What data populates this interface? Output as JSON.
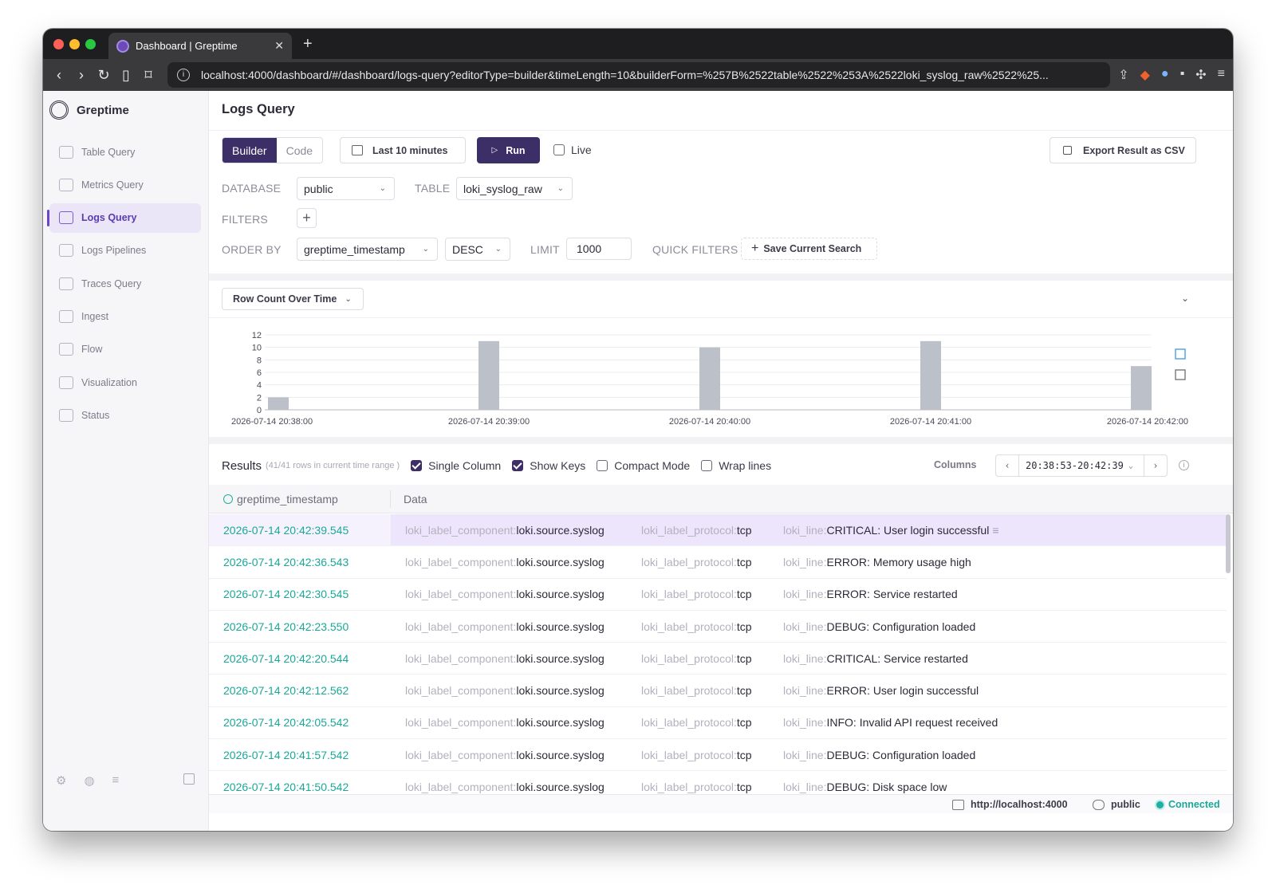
{
  "browser": {
    "tab_title": "Dashboard | Greptime",
    "url": "localhost:4000/dashboard/#/dashboard/logs-query?editorType=builder&timeLength=10&builderForm=%257B%2522table%2522%253A%2522loki_syslog_raw%2522%25..."
  },
  "sidebar": {
    "brand": "Greptime",
    "items": [
      {
        "label": "Table Query",
        "icon": "table-icon"
      },
      {
        "label": "Metrics Query",
        "icon": "chart-icon"
      },
      {
        "label": "Logs Query",
        "icon": "document-icon",
        "active": true
      },
      {
        "label": "Logs Pipelines",
        "icon": "pipeline-icon"
      },
      {
        "label": "Traces Query",
        "icon": "layers-icon"
      },
      {
        "label": "Ingest",
        "icon": "import-icon"
      },
      {
        "label": "Flow",
        "icon": "flow-icon"
      },
      {
        "label": "Visualization",
        "icon": "monitor-icon"
      },
      {
        "label": "Status",
        "icon": "server-icon"
      }
    ]
  },
  "main": {
    "title": "Logs Query",
    "editor_tabs": [
      "Builder",
      "Code"
    ],
    "time_range": "Last 10 minutes",
    "run_label": "Run",
    "live_label": "Live",
    "export_label": "Export Result as CSV",
    "database_label": "DATABASE",
    "database_value": "public",
    "table_label": "TABLE",
    "table_value": "loki_syslog_raw",
    "filters_label": "FILTERS",
    "order_by_label": "ORDER BY",
    "order_by_value": "greptime_timestamp",
    "order_dir_value": "DESC",
    "limit_label": "LIMIT",
    "limit_value": "1000",
    "quick_filters_label": "QUICK FILTERS",
    "save_search_label": "Save Current Search",
    "chart_selector": "Row Count Over Time"
  },
  "chart_data": {
    "type": "bar",
    "categories": [
      "2026-07-14 20:38:00",
      "2026-07-14 20:39:00",
      "2026-07-14 20:40:00",
      "2026-07-14 20:41:00",
      "2026-07-14 20:42:00"
    ],
    "bars": [
      {
        "x": "2026-07-14 20:38:00",
        "value": 2
      },
      {
        "x": "2026-07-14 20:39:00",
        "value": 11
      },
      {
        "x": "2026-07-14 20:40:00",
        "value": 10
      },
      {
        "x": "2026-07-14 20:41:00",
        "value": 11
      },
      {
        "x": "2026-07-14 20:42:00",
        "value": 7
      }
    ],
    "yticks": [
      0,
      2,
      4,
      6,
      8,
      10,
      12
    ],
    "ylim": [
      0,
      12
    ],
    "color": "#bcc0c8"
  },
  "results": {
    "title": "Results",
    "meta": "(41/41  rows in current time range )",
    "options": [
      {
        "label": "Single Column",
        "checked": true
      },
      {
        "label": "Show Keys",
        "checked": true
      },
      {
        "label": "Compact Mode",
        "checked": false
      },
      {
        "label": "Wrap lines",
        "checked": false
      }
    ],
    "columns_label": "Columns",
    "range_text": "20:38:53-20:42:39",
    "col_timestamp": "greptime_timestamp",
    "col_data": "Data",
    "rows": [
      {
        "ts": "2026-07-14 20:42:39.545",
        "component": "loki.source.syslog",
        "protocol": "tcp",
        "line": "CRITICAL: User login successful"
      },
      {
        "ts": "2026-07-14 20:42:36.543",
        "component": "loki.source.syslog",
        "protocol": "tcp",
        "line": "ERROR: Memory usage high"
      },
      {
        "ts": "2026-07-14 20:42:30.545",
        "component": "loki.source.syslog",
        "protocol": "tcp",
        "line": "ERROR: Service restarted"
      },
      {
        "ts": "2026-07-14 20:42:23.550",
        "component": "loki.source.syslog",
        "protocol": "tcp",
        "line": "DEBUG: Configuration loaded"
      },
      {
        "ts": "2026-07-14 20:42:20.544",
        "component": "loki.source.syslog",
        "protocol": "tcp",
        "line": "CRITICAL: Service restarted"
      },
      {
        "ts": "2026-07-14 20:42:12.562",
        "component": "loki.source.syslog",
        "protocol": "tcp",
        "line": "ERROR: User login successful"
      },
      {
        "ts": "2026-07-14 20:42:05.542",
        "component": "loki.source.syslog",
        "protocol": "tcp",
        "line": "INFO: Invalid API request received"
      },
      {
        "ts": "2026-07-14 20:41:57.542",
        "component": "loki.source.syslog",
        "protocol": "tcp",
        "line": "DEBUG: Configuration loaded"
      },
      {
        "ts": "2026-07-14 20:41:50.542",
        "component": "loki.source.syslog",
        "protocol": "tcp",
        "line": "DEBUG: Disk space low"
      }
    ],
    "key_component": "loki_label_component:",
    "key_protocol": "loki_label_protocol:",
    "key_line": "loki_line:"
  },
  "status": {
    "host": "http://localhost:4000",
    "database": "public",
    "connection": "Connected"
  }
}
